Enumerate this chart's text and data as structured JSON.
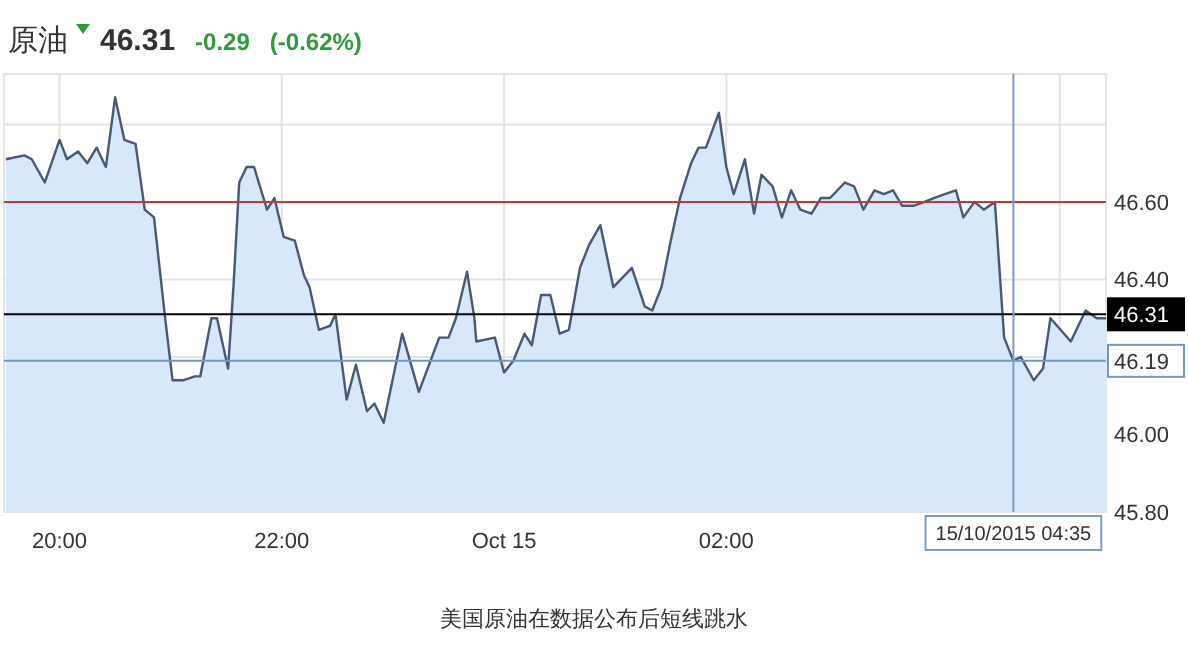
{
  "chart_data": {
    "type": "area",
    "title": "原油",
    "annotations": [
      "46.31",
      "-0.29",
      "(-0.62%)",
      "美国原油在数据公布后短线跳水"
    ],
    "xlim": [
      "2015-10-14T19:30",
      "2015-10-15T05:25"
    ],
    "ylim": [
      45.8,
      46.93
    ],
    "xticks": [
      {
        "value": "2015-10-14T20:00",
        "label": "20:00"
      },
      {
        "value": "2015-10-14T22:00",
        "label": "22:00"
      },
      {
        "value": "2015-10-15",
        "label": "Oct 15"
      },
      {
        "value": "2015-10-15T02:00",
        "label": "02:00"
      },
      {
        "value": "2015-10-15T05:00",
        "label": null
      }
    ],
    "yticks": [
      {
        "value": 46.8,
        "label": null
      },
      {
        "value": 46.6,
        "label": "46.60"
      },
      {
        "value": 46.4,
        "label": "46.40"
      },
      {
        "value": 46.2,
        "label": null
      },
      {
        "value": 46.0,
        "label": "46.00"
      },
      {
        "value": 45.8,
        "label": "45.80"
      }
    ],
    "grid": true,
    "ref_lines": [
      {
        "axis": "y",
        "value": 46.6,
        "label": null,
        "color": "#c0393b"
      },
      {
        "axis": "y",
        "value": 46.31,
        "label": "46.31",
        "color": "#000000"
      },
      {
        "axis": "y",
        "value": 46.19,
        "label": "46.19",
        "color": "#6f98c4"
      },
      {
        "axis": "x",
        "value": "2015-10-15T04:35",
        "label": "15/10/2015 04:35",
        "color": "#7a9cc6"
      }
    ],
    "series": [
      {
        "color": "#4a5775",
        "x": [
          "2015-10-14T19:31",
          "2015-10-14T19:41",
          "2015-10-14T19:45",
          "2015-10-14T19:52",
          "2015-10-14T20:00",
          "2015-10-14T20:04",
          "2015-10-14T20:10",
          "2015-10-14T20:15",
          "2015-10-14T20:20",
          "2015-10-14T20:25",
          "2015-10-14T20:30",
          "2015-10-14T20:35",
          "2015-10-14T20:41",
          "2015-10-14T20:46",
          "2015-10-14T20:51",
          "2015-10-14T20:57",
          "2015-10-14T21:01",
          "2015-10-14T21:07",
          "2015-10-14T21:13",
          "2015-10-14T21:16",
          "2015-10-14T21:22",
          "2015-10-14T21:25",
          "2015-10-14T21:31",
          "2015-10-14T21:34",
          "2015-10-14T21:37",
          "2015-10-14T21:41",
          "2015-10-14T21:45",
          "2015-10-14T21:52",
          "2015-10-14T21:56",
          "2015-10-14T22:01",
          "2015-10-14T22:07",
          "2015-10-14T22:12",
          "2015-10-14T22:15",
          "2015-10-14T22:20",
          "2015-10-14T22:26",
          "2015-10-14T22:29",
          "2015-10-14T22:35",
          "2015-10-14T22:40",
          "2015-10-14T22:46",
          "2015-10-14T22:50",
          "2015-10-14T22:55",
          "2015-10-14T23:05",
          "2015-10-14T23:14",
          "2015-10-14T23:25",
          "2015-10-14T23:30",
          "2015-10-14T23:34",
          "2015-10-14T23:40",
          "2015-10-14T23:44",
          "2015-10-14T23:45",
          "2015-10-14T23:55",
          "2015-10-15T00:00",
          "2015-10-15T00:05",
          "2015-10-15T00:11",
          "2015-10-15T00:15",
          "2015-10-15T00:20",
          "2015-10-15T00:25",
          "2015-10-15T00:30",
          "2015-10-15T00:35",
          "2015-10-15T00:41",
          "2015-10-15T00:46",
          "2015-10-15T00:52",
          "2015-10-15T00:59",
          "2015-10-15T01:09",
          "2015-10-15T01:16",
          "2015-10-15T01:20",
          "2015-10-15T01:25",
          "2015-10-15T01:30",
          "2015-10-15T01:35",
          "2015-10-15T01:41",
          "2015-10-15T01:45",
          "2015-10-15T01:49",
          "2015-10-15T01:56",
          "2015-10-15T02:00",
          "2015-10-15T02:04",
          "2015-10-15T02:10",
          "2015-10-15T02:15",
          "2015-10-15T02:19",
          "2015-10-15T02:25",
          "2015-10-15T02:30",
          "2015-10-15T02:35",
          "2015-10-15T02:40",
          "2015-10-15T02:46",
          "2015-10-15T02:51",
          "2015-10-15T02:56",
          "2015-10-15T03:04",
          "2015-10-15T03:09",
          "2015-10-15T03:14",
          "2015-10-15T03:20",
          "2015-10-15T03:25",
          "2015-10-15T03:30",
          "2015-10-15T03:35",
          "2015-10-15T03:41",
          "2015-10-15T03:47",
          "2015-10-15T03:52",
          "2015-10-15T03:58",
          "2015-10-15T04:04",
          "2015-10-15T04:08",
          "2015-10-15T04:14",
          "2015-10-15T04:19",
          "2015-10-15T04:25",
          "2015-10-15T04:30",
          "2015-10-15T04:35",
          "2015-10-15T04:39",
          "2015-10-15T04:46",
          "2015-10-15T04:51",
          "2015-10-15T04:55",
          "2015-10-15T05:06",
          "2015-10-15T05:14",
          "2015-10-15T05:20",
          "2015-10-15T05:25"
        ],
        "values": [
          46.71,
          46.72,
          46.71,
          46.65,
          46.76,
          46.71,
          46.73,
          46.7,
          46.74,
          46.69,
          46.87,
          46.76,
          46.75,
          46.58,
          46.56,
          46.3,
          46.14,
          46.14,
          46.15,
          46.15,
          46.3,
          46.3,
          46.17,
          46.39,
          46.65,
          46.69,
          46.69,
          46.58,
          46.61,
          46.51,
          46.5,
          46.41,
          46.38,
          46.27,
          46.28,
          46.31,
          46.09,
          46.18,
          46.06,
          46.08,
          46.03,
          46.26,
          46.11,
          46.25,
          46.25,
          46.3,
          46.42,
          46.3,
          46.24,
          46.25,
          46.16,
          46.19,
          46.26,
          46.23,
          46.36,
          46.36,
          46.26,
          46.27,
          46.43,
          46.49,
          46.54,
          46.38,
          46.43,
          46.33,
          46.32,
          46.38,
          46.5,
          46.61,
          46.7,
          46.74,
          46.74,
          46.83,
          46.69,
          46.62,
          46.71,
          46.57,
          46.67,
          46.64,
          46.56,
          46.63,
          46.58,
          46.57,
          46.61,
          46.61,
          46.65,
          46.64,
          46.58,
          46.63,
          46.62,
          46.63,
          46.59,
          46.59,
          46.6,
          46.61,
          46.62,
          46.63,
          46.56,
          46.6,
          46.58,
          46.6,
          46.25,
          46.19,
          46.2,
          46.14,
          46.17,
          46.3,
          46.24,
          46.32,
          46.3,
          46.3
        ]
      }
    ]
  }
}
